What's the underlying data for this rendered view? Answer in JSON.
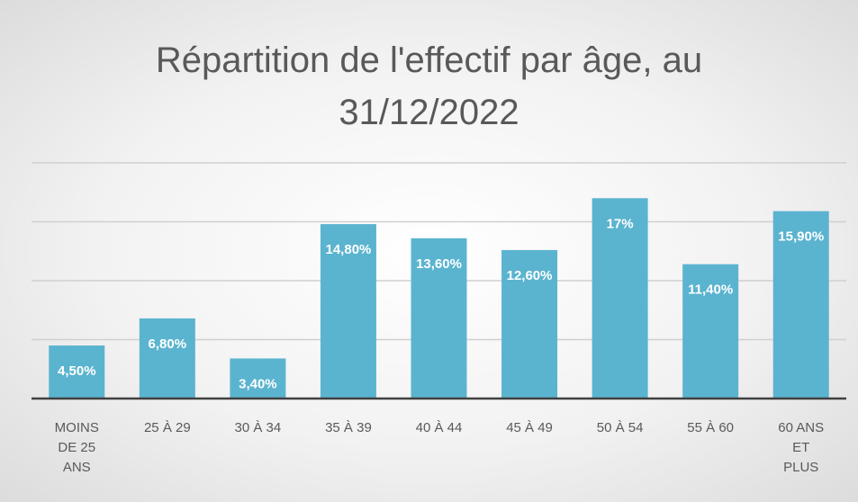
{
  "chart_data": {
    "type": "bar",
    "title": "Répartition de l'effectif par âge, au 31/12/2022",
    "categories": [
      "MOINS DE 25 ANS",
      "25 À 29",
      "30 À 34",
      "35 À 39",
      "40 À 44",
      "45 À 49",
      "50 À 54",
      "55 À 60",
      "60 ANS ET PLUS"
    ],
    "values": [
      4.5,
      6.8,
      3.4,
      14.8,
      13.6,
      12.6,
      17,
      11.4,
      15.9
    ],
    "value_labels": [
      "4,50%",
      "6,80%",
      "3,40%",
      "14,80%",
      "13,60%",
      "12,60%",
      "17%",
      "11,40%",
      "15,90%"
    ],
    "color": "#5bb4cf",
    "ylim": [
      0,
      20
    ],
    "yticks": [
      0,
      5,
      10,
      15,
      20
    ],
    "grid": true
  }
}
